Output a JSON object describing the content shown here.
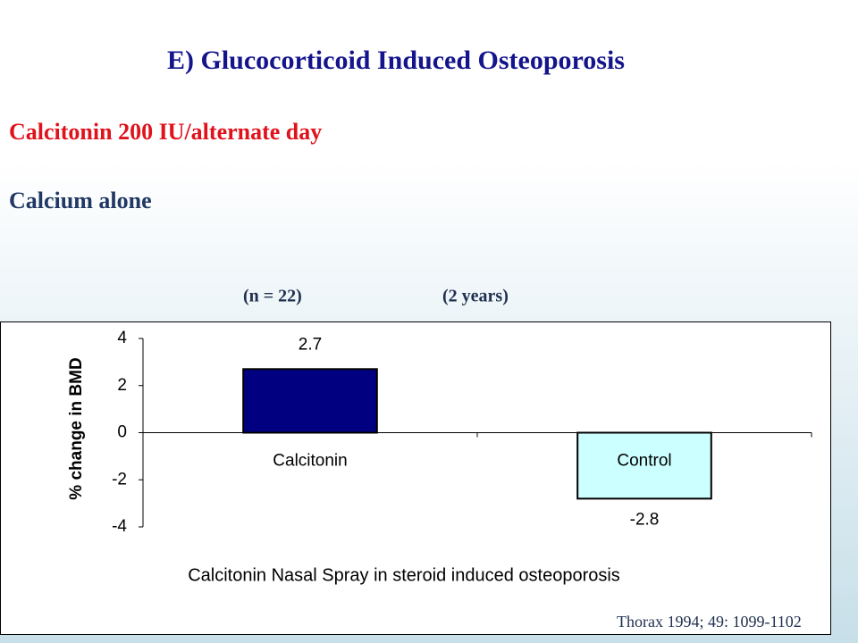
{
  "slide": {
    "title": "E)  Glucocorticoid  Induced  Osteoporosis",
    "line1": "Calcitonin 200 IU/alternate day",
    "line2": "Calcium alone",
    "note_n": "(n = 22)",
    "note_duration": "(2 years)",
    "citation": "Thorax  1994;  49:  1099-1102"
  },
  "chart_data": {
    "type": "bar",
    "caption": "Calcitonin Nasal Spray in steroid induced osteoporosis",
    "ylabel": "% change in BMD",
    "categories": [
      "Calcitonin",
      "Control"
    ],
    "values": [
      2.7,
      -2.8
    ],
    "colors": [
      "#000080",
      "#ccffff"
    ],
    "ylim": [
      -4,
      4
    ],
    "yticks": [
      -4,
      -2,
      0,
      2,
      4
    ]
  }
}
